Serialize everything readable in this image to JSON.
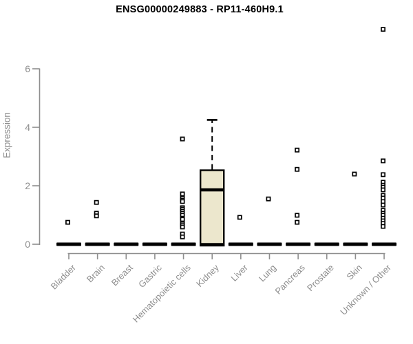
{
  "chart_data": {
    "type": "boxplot",
    "title": "ENSG00000249883 - RP11-460H9.1",
    "ylabel": "Expression",
    "xlabel": "",
    "yticks": [
      0,
      2,
      4,
      6
    ],
    "ylim": [
      0,
      7.6
    ],
    "grid": false,
    "legend": "none",
    "categories": [
      "Bladder",
      "Brain",
      "Breast",
      "Gastric",
      "Hematopoietic cells",
      "Kidney",
      "Liver",
      "Lung",
      "Pancreas",
      "Prostate",
      "Skin",
      "Unknown / Other"
    ],
    "boxes": [
      {
        "category": "Bladder",
        "q1": 0,
        "median": 0,
        "q3": 0,
        "whisker_low": 0,
        "whisker_high": 0,
        "outliers": [
          0.75
        ]
      },
      {
        "category": "Brain",
        "q1": 0,
        "median": 0,
        "q3": 0,
        "whisker_low": 0,
        "whisker_high": 0,
        "outliers": [
          1.43,
          1.06,
          0.97
        ]
      },
      {
        "category": "Breast",
        "q1": 0,
        "median": 0,
        "q3": 0,
        "whisker_low": 0,
        "whisker_high": 0,
        "outliers": []
      },
      {
        "category": "Gastric",
        "q1": 0,
        "median": 0,
        "q3": 0,
        "whisker_low": 0,
        "whisker_high": 0,
        "outliers": []
      },
      {
        "category": "Hematopoietic cells",
        "q1": 0,
        "median": 0,
        "q3": 0,
        "whisker_low": 0,
        "whisker_high": 0,
        "outliers": [
          3.6,
          1.72,
          1.58,
          1.51,
          1.46,
          1.25,
          1.2,
          1.13,
          1.06,
          0.99,
          0.89,
          0.85,
          0.71,
          0.66,
          0.59,
          0.35,
          0.25
        ]
      },
      {
        "category": "Kidney",
        "q1": 0,
        "median": 1.86,
        "q3": 2.53,
        "whisker_low": 0,
        "whisker_high": 4.25,
        "outliers": []
      },
      {
        "category": "Liver",
        "q1": 0,
        "median": 0,
        "q3": 0,
        "whisker_low": 0,
        "whisker_high": 0,
        "outliers": [
          0.92
        ]
      },
      {
        "category": "Lung",
        "q1": 0,
        "median": 0,
        "q3": 0,
        "whisker_low": 0,
        "whisker_high": 0,
        "outliers": [
          1.55
        ]
      },
      {
        "category": "Pancreas",
        "q1": 0,
        "median": 0,
        "q3": 0,
        "whisker_low": 0,
        "whisker_high": 0,
        "outliers": [
          3.22,
          2.56,
          0.99,
          0.75
        ]
      },
      {
        "category": "Prostate",
        "q1": 0,
        "median": 0,
        "q3": 0,
        "whisker_low": 0,
        "whisker_high": 0,
        "outliers": []
      },
      {
        "category": "Skin",
        "q1": 0,
        "median": 0,
        "q3": 0,
        "whisker_low": 0,
        "whisker_high": 0,
        "outliers": [
          2.4
        ]
      },
      {
        "category": "Unknown / Other",
        "q1": 0,
        "median": 0,
        "q3": 0,
        "whisker_low": 0,
        "whisker_high": 0,
        "outliers": [
          7.35,
          2.85,
          2.38,
          2.12,
          2.02,
          1.95,
          1.86,
          1.67,
          1.58,
          1.46,
          1.34,
          1.16,
          1.06,
          0.99,
          0.89,
          0.8,
          0.71,
          0.61
        ]
      }
    ],
    "colors": {
      "box_fill": "#ECE7CD",
      "box_stroke": "#000000",
      "median": "#000000",
      "marker_stroke": "#000000",
      "marker_fill": "#FFFFFF",
      "axis": "#8E8E8E",
      "tick_text": "#8E8E8E",
      "title_text": "#000000",
      "background": "#FFFFFF"
    }
  }
}
